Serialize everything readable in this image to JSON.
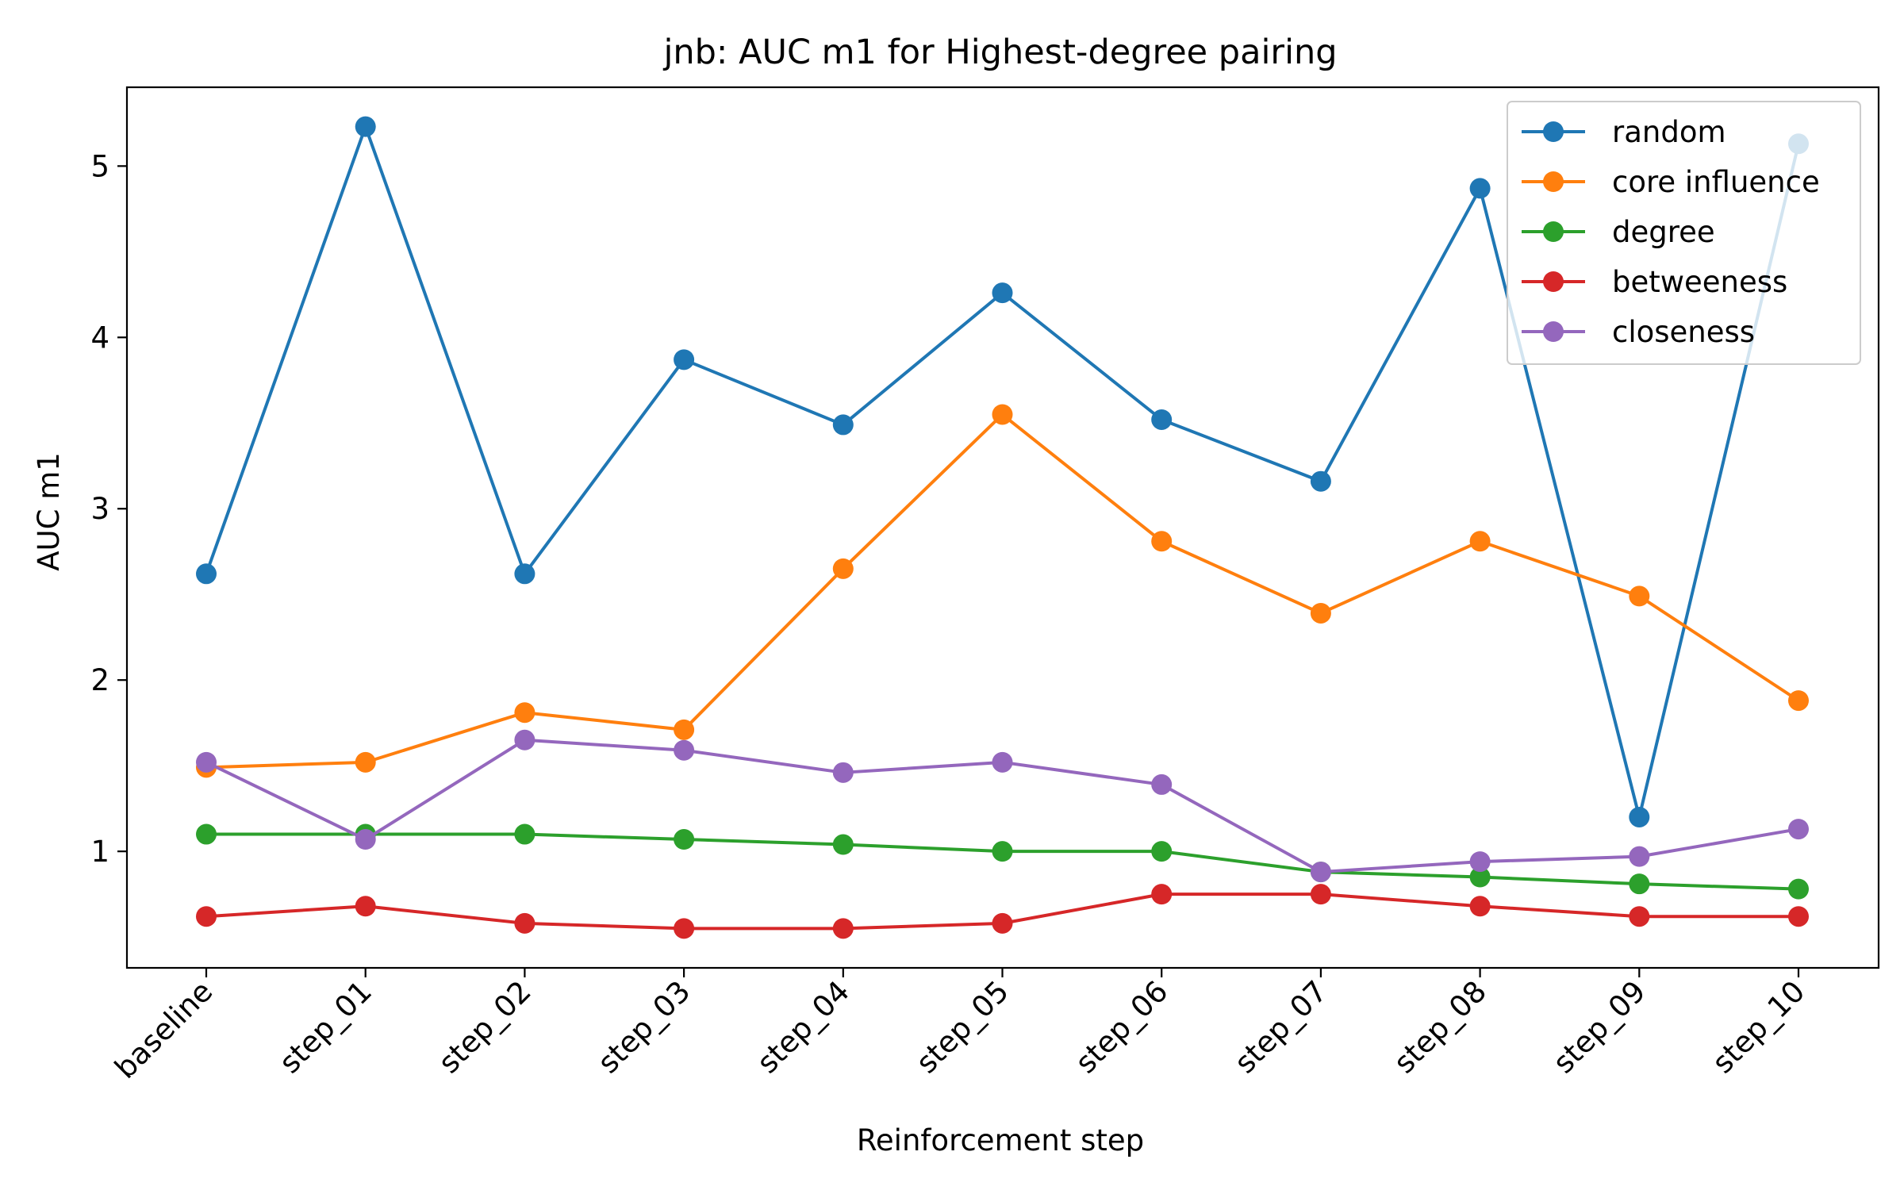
{
  "chart_data": {
    "type": "line",
    "title": "jnb: AUC m1 for Highest-degree pairing",
    "xlabel": "Reinforcement step",
    "ylabel": "AUC m1",
    "categories": [
      "baseline",
      "step_01",
      "step_02",
      "step_03",
      "step_04",
      "step_05",
      "step_06",
      "step_07",
      "step_08",
      "step_09",
      "step_10"
    ],
    "ylim": [
      0.32,
      5.46
    ],
    "yticks": [
      1,
      2,
      3,
      4,
      5
    ],
    "grid": false,
    "legend_position": "top-right",
    "series": [
      {
        "name": "random",
        "color": "#1f77b4",
        "values": [
          2.62,
          5.23,
          2.62,
          3.87,
          3.49,
          4.26,
          3.52,
          3.16,
          4.87,
          1.2,
          5.13
        ]
      },
      {
        "name": "core influence",
        "color": "#ff7f0e",
        "values": [
          1.49,
          1.52,
          1.81,
          1.71,
          2.65,
          3.55,
          2.81,
          2.39,
          2.81,
          2.49,
          1.88
        ]
      },
      {
        "name": "degree",
        "color": "#2ca02c",
        "values": [
          1.1,
          1.1,
          1.1,
          1.07,
          1.04,
          1.0,
          1.0,
          0.88,
          0.85,
          0.81,
          0.78
        ]
      },
      {
        "name": "betweeness",
        "color": "#d62728",
        "values": [
          0.62,
          0.68,
          0.58,
          0.55,
          0.55,
          0.58,
          0.75,
          0.75,
          0.68,
          0.62,
          0.62
        ]
      },
      {
        "name": "closeness",
        "color": "#9467bd",
        "values": [
          1.52,
          1.07,
          1.65,
          1.59,
          1.46,
          1.52,
          1.39,
          0.88,
          0.94,
          0.97,
          1.13
        ]
      }
    ]
  }
}
